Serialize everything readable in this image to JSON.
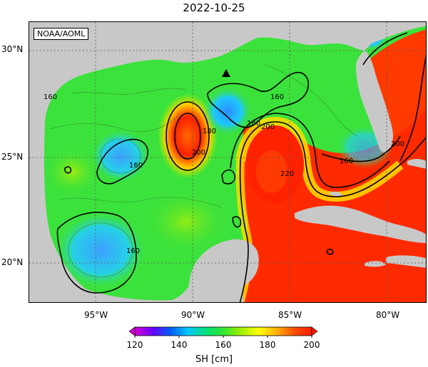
{
  "title": "2022-10-25",
  "credit": "NOAA/AOML",
  "colors": {
    "land": "#c8c8c8",
    "ocean_low": "#2aa4ff",
    "ocean_mid": "#3be23b",
    "ocean_high": "#ff2a00",
    "contour": "#000000",
    "grid": "#555555"
  },
  "axes": {
    "x_ticks": [
      "95°W",
      "90°W",
      "85°W",
      "80°W"
    ],
    "y_ticks": [
      "30°N",
      "25°N",
      "20°N"
    ]
  },
  "contour_labels": [
    "160",
    "160",
    "160",
    "160",
    "160",
    "180",
    "180",
    "200",
    "200",
    "200",
    "220"
  ],
  "marker": "triangle-marker",
  "colorbar": {
    "label": "SH [cm]",
    "ticks": [
      "120",
      "140",
      "160",
      "180",
      "200"
    ],
    "range": [
      120,
      200
    ],
    "colors": [
      "#d400d4",
      "#6a00ff",
      "#005aff",
      "#00c8ff",
      "#00e07a",
      "#33e633",
      "#a0f000",
      "#ffff00",
      "#ffb000",
      "#ff5000",
      "#ff1a00"
    ]
  }
}
